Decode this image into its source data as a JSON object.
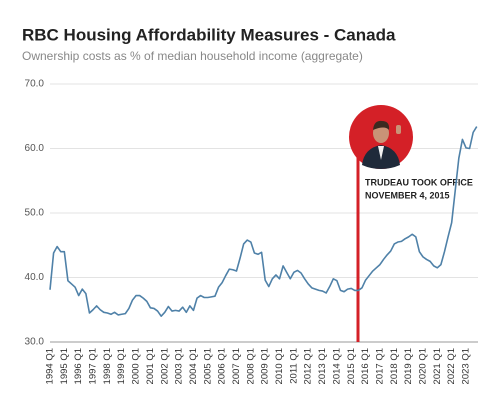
{
  "chart_data": {
    "type": "line",
    "title": "RBC Housing Affordability Measures - Canada",
    "subtitle": "Ownership costs as % of median household income (aggregate)",
    "categories": [
      "1994 Q1",
      null,
      null,
      null,
      "1995 Q1",
      null,
      null,
      null,
      "1996 Q1",
      null,
      null,
      null,
      "1997 Q1",
      null,
      null,
      null,
      "1998 Q1",
      null,
      null,
      null,
      "1999 Q1",
      null,
      null,
      null,
      "2000 Q1",
      null,
      null,
      null,
      "2001 Q1",
      null,
      null,
      null,
      "2002 Q1",
      null,
      null,
      null,
      "2003 Q1",
      null,
      null,
      null,
      "2004 Q1",
      null,
      null,
      null,
      "2005 Q1",
      null,
      null,
      null,
      "2006 Q1",
      null,
      null,
      null,
      "2007 Q1",
      null,
      null,
      null,
      "2008 Q1",
      null,
      null,
      null,
      "2009 Q1",
      null,
      null,
      null,
      "2010 Q1",
      null,
      null,
      null,
      "2011 Q1",
      null,
      null,
      null,
      "2012 Q1",
      null,
      null,
      null,
      "2013 Q1",
      null,
      null,
      null,
      "2014 Q1",
      null,
      null,
      null,
      "2015 Q1",
      null,
      null,
      null,
      "2016 Q1",
      null,
      null,
      null,
      "2017 Q1",
      null,
      null,
      null,
      "2018 Q1",
      null,
      null,
      null,
      "2019 Q1",
      null,
      null,
      null,
      "2020 Q1",
      null,
      null,
      null,
      "2021 Q1",
      null,
      null,
      null,
      "2022 Q1",
      null,
      null,
      null,
      "2023 Q1",
      null,
      null,
      null
    ],
    "series": [
      {
        "color": "#4f81a8",
        "values": [
          38.1,
          43.8,
          44.8,
          44.0,
          44.0,
          39.5,
          39.0,
          38.5,
          37.2,
          38.2,
          37.5,
          34.5,
          35.0,
          35.6,
          35.0,
          34.6,
          34.5,
          34.3,
          34.6,
          34.2,
          34.3,
          34.4,
          35.2,
          36.5,
          37.2,
          37.2,
          36.8,
          36.3,
          35.3,
          35.2,
          34.8,
          34.0,
          34.6,
          35.5,
          34.8,
          34.9,
          34.8,
          35.4,
          34.6,
          35.6,
          34.9,
          36.8,
          37.2,
          36.9,
          36.9,
          37.0,
          37.1,
          38.5,
          39.2,
          40.3,
          41.3,
          41.2,
          41.0,
          43.0,
          45.2,
          45.8,
          45.5,
          43.8,
          43.6,
          43.9,
          39.6,
          38.6,
          39.8,
          40.4,
          39.8,
          41.8,
          40.8,
          39.8,
          40.8,
          41.1,
          40.7,
          39.8,
          39.0,
          38.4,
          38.2,
          38.0,
          37.9,
          37.6,
          38.6,
          39.8,
          39.5,
          38.0,
          37.8,
          38.2,
          38.3,
          38.0,
          38.0,
          38.4,
          39.6,
          40.3,
          41.0,
          41.5,
          42.0,
          42.8,
          43.5,
          44.1,
          45.2,
          45.5,
          45.6,
          46.0,
          46.3,
          46.7,
          46.3,
          44.0,
          43.2,
          42.8,
          42.5,
          41.8,
          41.5,
          42.0,
          44.0,
          46.3,
          48.5,
          53.5,
          58.5,
          61.4,
          60.1,
          60.0,
          62.5,
          63.4
        ]
      }
    ],
    "ylim": [
      30,
      70
    ],
    "yticks": [
      {
        "value": 30,
        "label": "30.0"
      },
      {
        "value": 40,
        "label": "40.0"
      },
      {
        "value": 50,
        "label": "50.0"
      },
      {
        "value": 60,
        "label": "60.0"
      },
      {
        "value": 70,
        "label": "70.0"
      }
    ],
    "grid": true,
    "annotation": {
      "color": "#d42027",
      "lines": [
        "TRUDEAU TOOK OFFICE",
        "NOVEMBER 4, 2015"
      ]
    }
  }
}
